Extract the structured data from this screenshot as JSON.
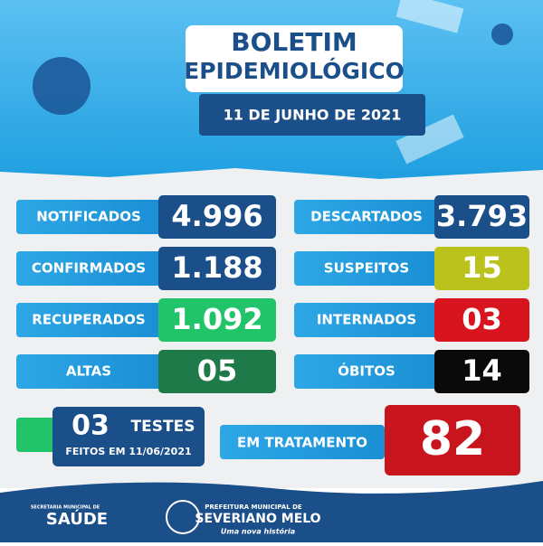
{
  "header": {
    "title_line1": "BOLETIM",
    "title_line2": "EPIDEMIOLÓGICO",
    "date": "11 DE JUNHO DE 2021"
  },
  "stats": [
    {
      "label": "NOTIFICADOS",
      "value": "4.996",
      "color": "#1b4f8a"
    },
    {
      "label": "DESCARTADOS",
      "value": "3.793",
      "color": "#1b4f8a"
    },
    {
      "label": "CONFIRMADOS",
      "value": "1.188",
      "color": "#1b4f8a"
    },
    {
      "label": "SUSPEITOS",
      "value": "15",
      "color": "#bcc21c"
    },
    {
      "label": "RECUPERADOS",
      "value": "1.092",
      "color": "#22c46a"
    },
    {
      "label": "INTERNADOS",
      "value": "03",
      "color": "#d8141f"
    },
    {
      "label": "ALTAS",
      "value": "05",
      "color": "#1e7a48"
    },
    {
      "label": "ÓBITOS",
      "value": "14",
      "color": "#0a0a0a"
    }
  ],
  "tests": {
    "value": "03",
    "label": "TESTES",
    "note": "FEITOS EM 11/06/2021"
  },
  "treatment": {
    "label": "EM TRATAMENTO",
    "value": "82"
  },
  "footer": {
    "secretaria": "SECRETARIA MUNICIPAL DE",
    "saude": "SAÚDE",
    "prefeitura": "PREFEITURA MUNICIPAL DE",
    "city": "SEVERIANO MELO",
    "motto": "Uma nova história"
  }
}
